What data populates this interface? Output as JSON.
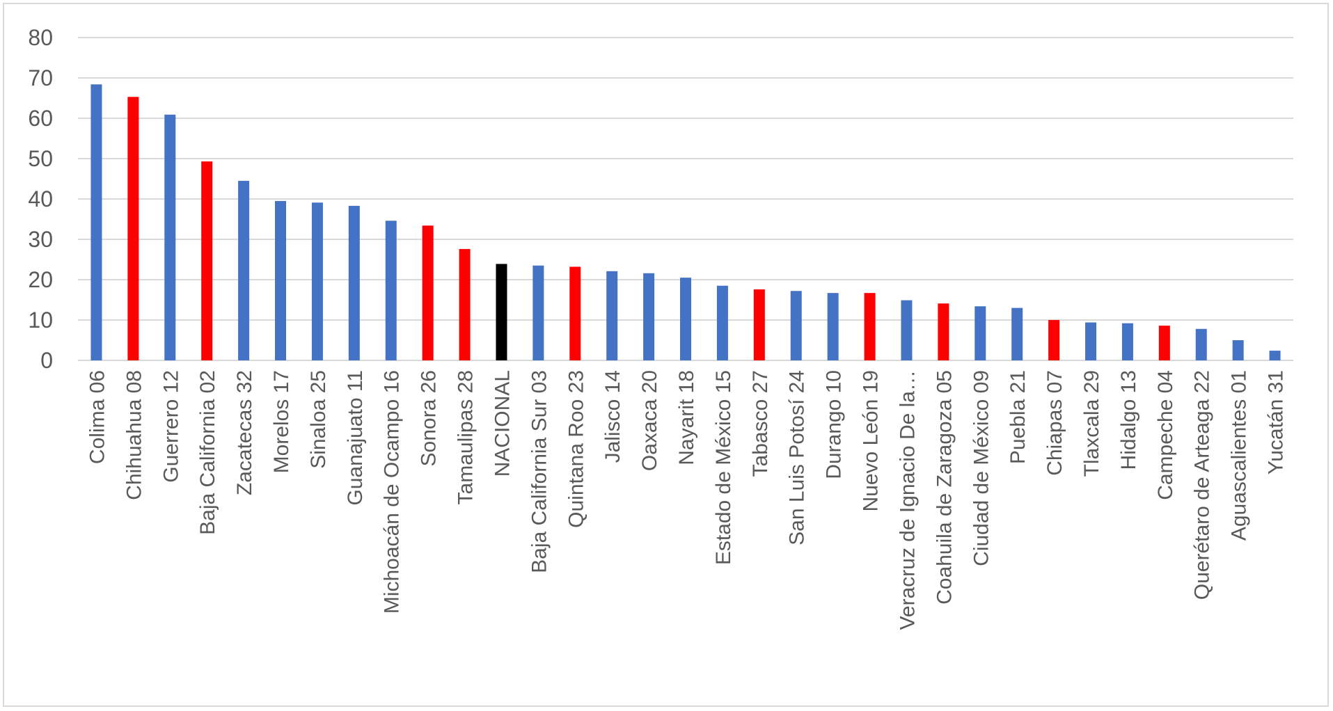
{
  "chart_data": {
    "type": "bar",
    "title": "",
    "xlabel": "",
    "ylabel": "",
    "ylim": [
      0,
      80
    ],
    "yticks": [
      0,
      10,
      20,
      30,
      40,
      50,
      60,
      70,
      80
    ],
    "grid": true,
    "legend": "none",
    "categories": [
      "Colima 06",
      "Chihuahua 08",
      "Guerrero 12",
      "Baja California 02",
      "Zacatecas 32",
      "Morelos 17",
      "Sinaloa 25",
      "Guanajuato 11",
      "Michoacán de Ocampo 16",
      "Sonora 26",
      "Tamaulipas 28",
      "NACIONAL",
      "Baja California Sur 03",
      "Quintana Roo 23",
      "Jalisco 14",
      "Oaxaca 20",
      "Nayarit 18",
      "Estado de México 15",
      "Tabasco 27",
      "San Luis Potosí 24",
      "Durango 10",
      "Nuevo León 19",
      "Veracruz de Ignacio De la…",
      "Coahuila de Zaragoza 05",
      "Ciudad de México 09",
      "Puebla 21",
      "Chiapas 07",
      "Tlaxcala 29",
      "Hidalgo 13",
      "Campeche 04",
      "Querétaro de Arteaga 22",
      "Aguascalientes 01",
      "Yucatán 31"
    ],
    "values": [
      68.4,
      65.3,
      60.9,
      49.3,
      44.5,
      39.5,
      39.1,
      38.3,
      34.6,
      33.4,
      27.6,
      23.9,
      23.5,
      23.2,
      22.1,
      21.6,
      20.5,
      18.5,
      17.6,
      17.2,
      16.7,
      16.7,
      14.9,
      14.1,
      13.4,
      13.0,
      10.0,
      9.4,
      9.2,
      8.6,
      7.8,
      5.0,
      2.4
    ],
    "bar_colors": [
      "#4472c4",
      "#ff0000",
      "#4472c4",
      "#ff0000",
      "#4472c4",
      "#4472c4",
      "#4472c4",
      "#4472c4",
      "#4472c4",
      "#ff0000",
      "#ff0000",
      "#000000",
      "#4472c4",
      "#ff0000",
      "#4472c4",
      "#4472c4",
      "#4472c4",
      "#4472c4",
      "#ff0000",
      "#4472c4",
      "#4472c4",
      "#ff0000",
      "#4472c4",
      "#ff0000",
      "#4472c4",
      "#4472c4",
      "#ff0000",
      "#4472c4",
      "#4472c4",
      "#ff0000",
      "#4472c4",
      "#4472c4",
      "#4472c4"
    ],
    "colors": {
      "default": "#4472c4",
      "highlight": "#ff0000",
      "national": "#000000",
      "grid": "#d9d9d9",
      "text": "#595959"
    }
  }
}
